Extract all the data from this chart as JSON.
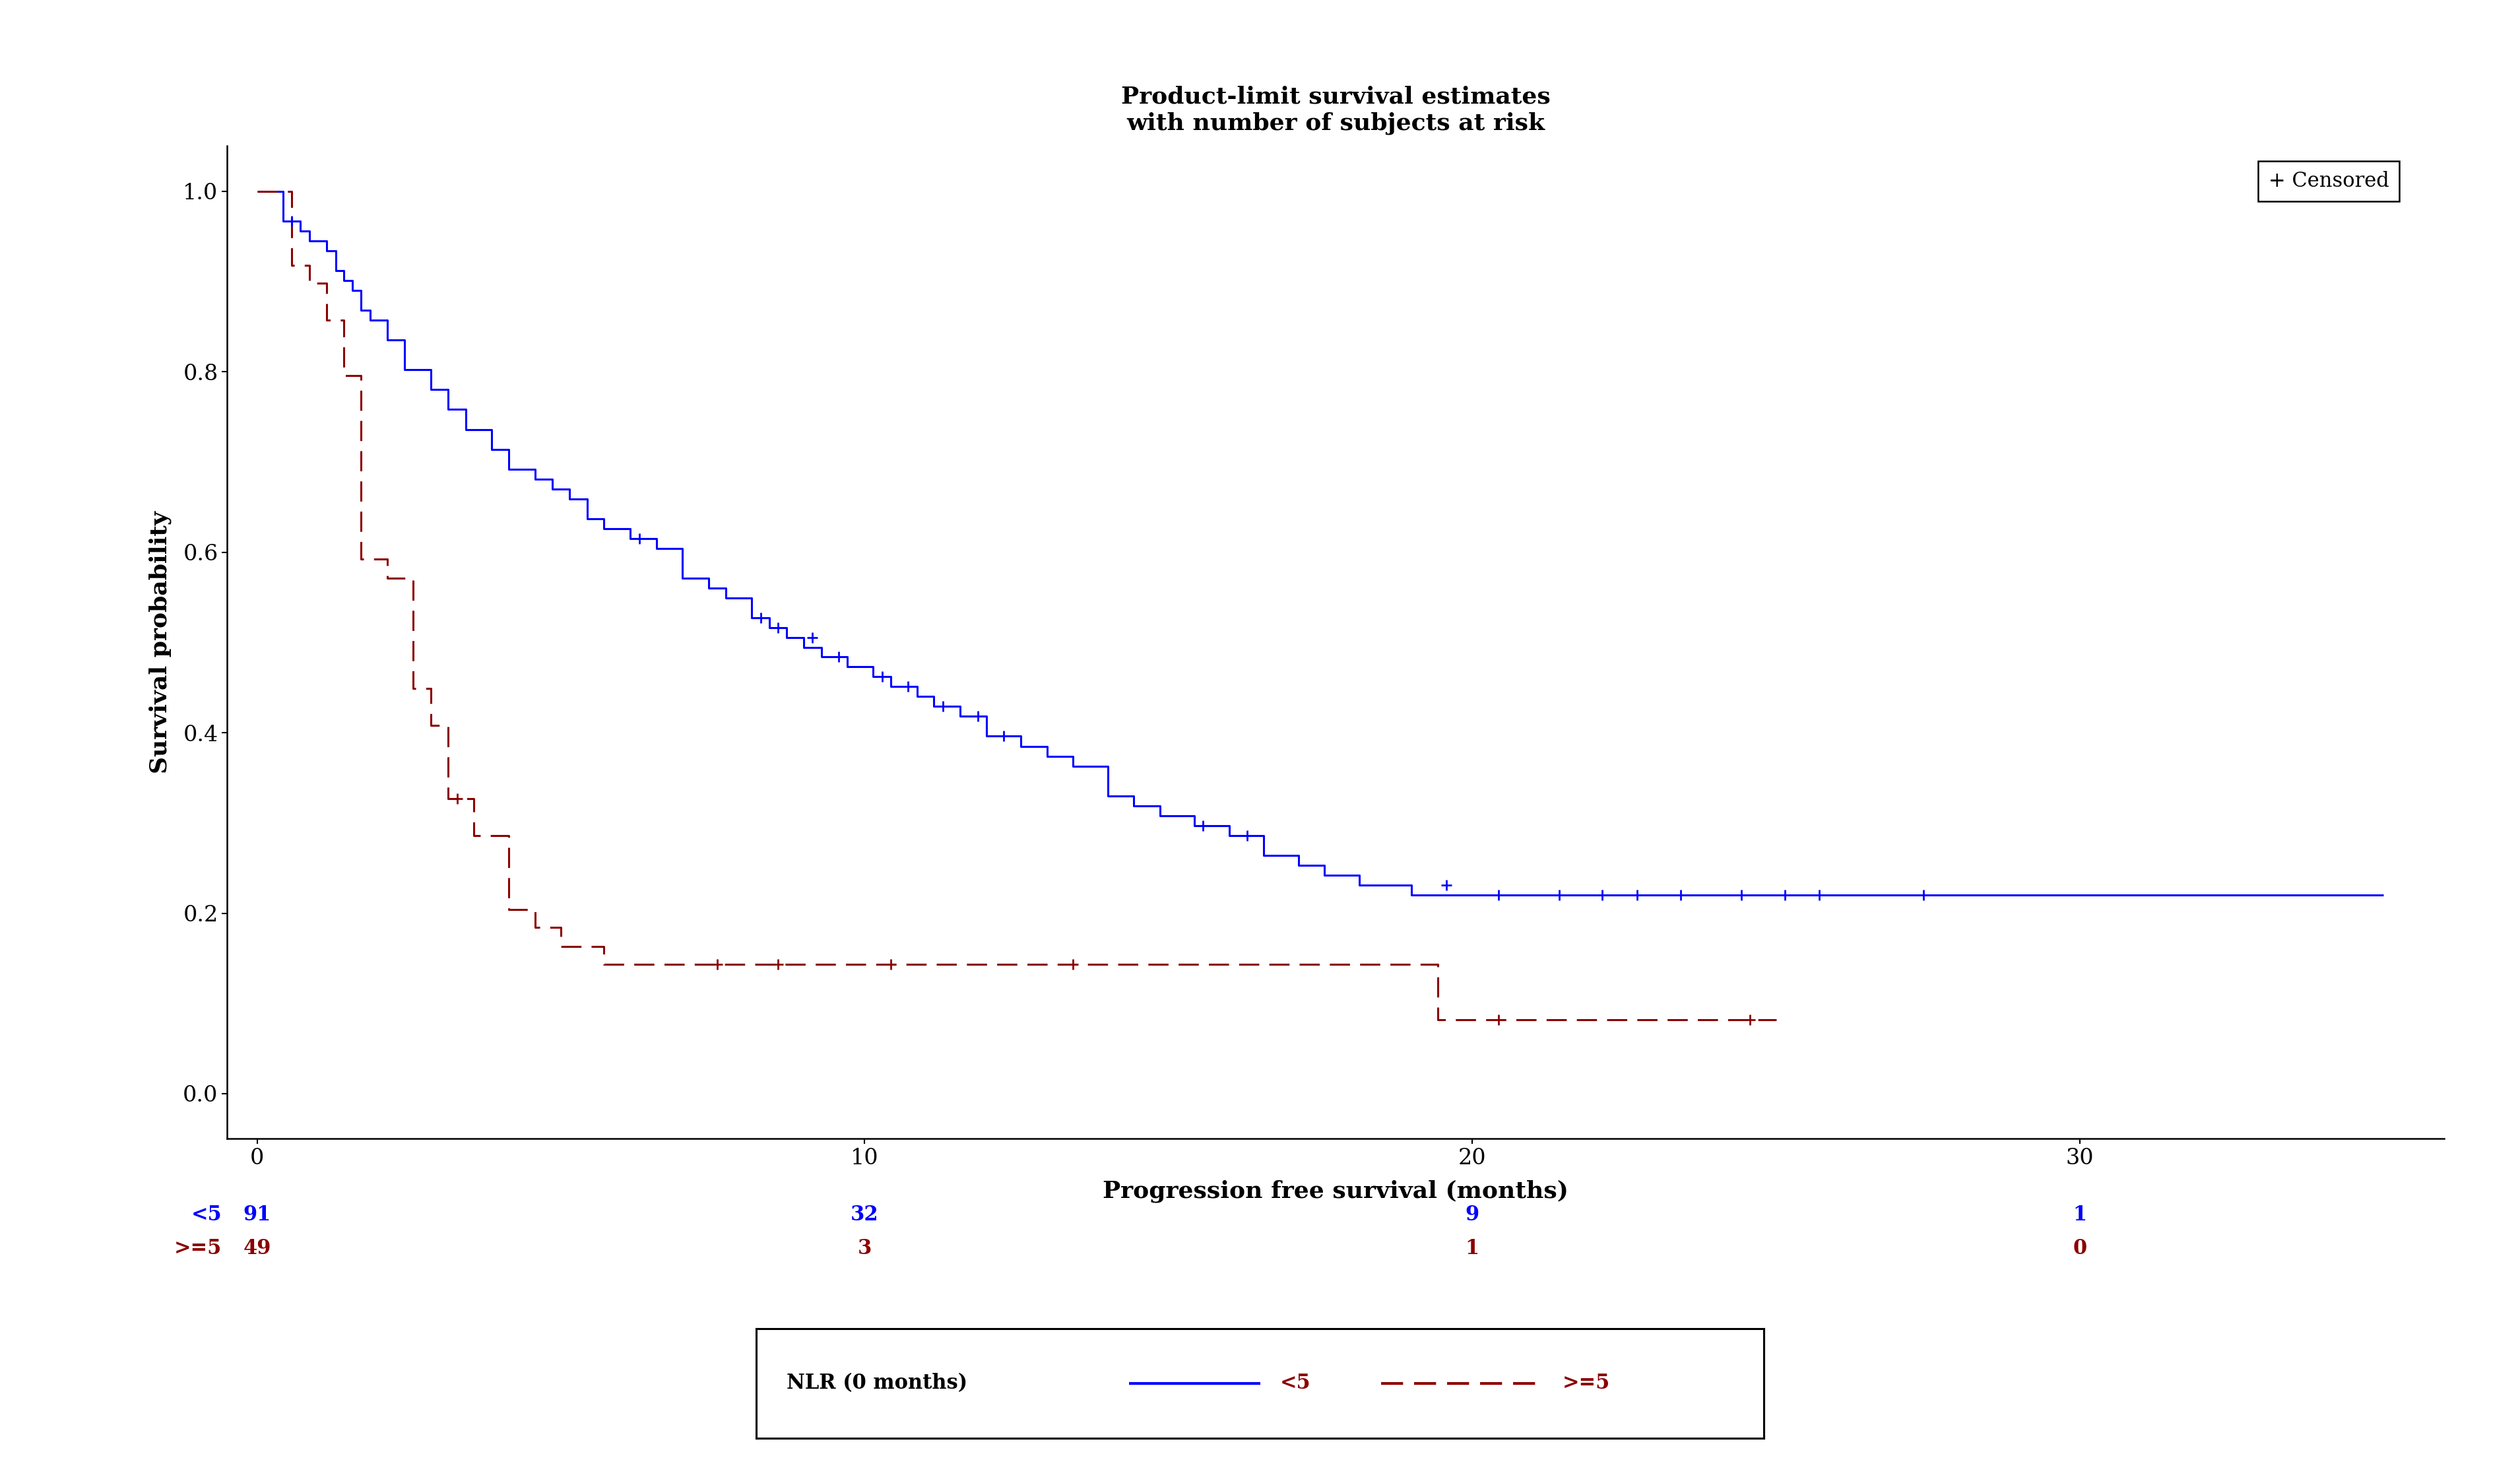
{
  "title": "Product-limit survival estimates\nwith number of subjects at risk",
  "xlabel": "Progression free survival (months)",
  "ylabel": "Survival probability",
  "xlim": [
    -0.5,
    36
  ],
  "ylim": [
    -0.05,
    1.05
  ],
  "xticks": [
    0,
    10,
    20,
    30
  ],
  "yticks": [
    0.0,
    0.2,
    0.4,
    0.6,
    0.8,
    1.0
  ],
  "blue_color": "#0000FF",
  "red_color": "#8B0000",
  "censored_label": "+ Censored",
  "legend_text": "NLR (0 months)",
  "legend_label_blue": "<5",
  "legend_label_red": ">=5",
  "risk_table": {
    "blue_label": "<5",
    "red_label": ">=5",
    "times": [
      0,
      10,
      20,
      30
    ],
    "blue_counts": [
      91,
      32,
      9,
      1
    ],
    "red_counts": [
      49,
      3,
      1,
      0
    ]
  },
  "blue_curve_steps": [
    [
      0.0,
      1.0
    ],
    [
      0.43,
      1.0
    ],
    [
      0.43,
      0.967
    ],
    [
      0.71,
      0.967
    ],
    [
      0.71,
      0.956
    ],
    [
      0.86,
      0.956
    ],
    [
      0.86,
      0.945
    ],
    [
      1.14,
      0.945
    ],
    [
      1.14,
      0.934
    ],
    [
      1.29,
      0.934
    ],
    [
      1.29,
      0.912
    ],
    [
      1.43,
      0.912
    ],
    [
      1.43,
      0.901
    ],
    [
      1.57,
      0.901
    ],
    [
      1.57,
      0.89
    ],
    [
      1.71,
      0.89
    ],
    [
      1.71,
      0.868
    ],
    [
      1.86,
      0.868
    ],
    [
      1.86,
      0.857
    ],
    [
      2.14,
      0.857
    ],
    [
      2.14,
      0.835
    ],
    [
      2.43,
      0.835
    ],
    [
      2.43,
      0.802
    ],
    [
      2.86,
      0.802
    ],
    [
      2.86,
      0.78
    ],
    [
      3.14,
      0.78
    ],
    [
      3.14,
      0.758
    ],
    [
      3.43,
      0.758
    ],
    [
      3.43,
      0.736
    ],
    [
      3.86,
      0.736
    ],
    [
      3.86,
      0.714
    ],
    [
      4.14,
      0.714
    ],
    [
      4.14,
      0.692
    ],
    [
      4.57,
      0.692
    ],
    [
      4.57,
      0.681
    ],
    [
      4.86,
      0.681
    ],
    [
      4.86,
      0.67
    ],
    [
      5.14,
      0.67
    ],
    [
      5.14,
      0.659
    ],
    [
      5.43,
      0.659
    ],
    [
      5.43,
      0.637
    ],
    [
      5.71,
      0.637
    ],
    [
      5.71,
      0.626
    ],
    [
      6.14,
      0.626
    ],
    [
      6.14,
      0.615
    ],
    [
      6.57,
      0.615
    ],
    [
      6.57,
      0.604
    ],
    [
      7.0,
      0.604
    ],
    [
      7.0,
      0.571
    ],
    [
      7.43,
      0.571
    ],
    [
      7.43,
      0.56
    ],
    [
      7.71,
      0.56
    ],
    [
      7.71,
      0.549
    ],
    [
      8.14,
      0.549
    ],
    [
      8.14,
      0.527
    ],
    [
      8.43,
      0.527
    ],
    [
      8.43,
      0.516
    ],
    [
      8.71,
      0.516
    ],
    [
      8.71,
      0.505
    ],
    [
      9.0,
      0.505
    ],
    [
      9.0,
      0.494
    ],
    [
      9.29,
      0.494
    ],
    [
      9.29,
      0.484
    ],
    [
      9.71,
      0.484
    ],
    [
      9.71,
      0.473
    ],
    [
      10.14,
      0.473
    ],
    [
      10.14,
      0.462
    ],
    [
      10.43,
      0.462
    ],
    [
      10.43,
      0.451
    ],
    [
      10.86,
      0.451
    ],
    [
      10.86,
      0.44
    ],
    [
      11.14,
      0.44
    ],
    [
      11.14,
      0.429
    ],
    [
      11.57,
      0.429
    ],
    [
      11.57,
      0.418
    ],
    [
      12.0,
      0.418
    ],
    [
      12.0,
      0.396
    ],
    [
      12.57,
      0.396
    ],
    [
      12.57,
      0.385
    ],
    [
      13.0,
      0.385
    ],
    [
      13.0,
      0.374
    ],
    [
      13.43,
      0.374
    ],
    [
      13.43,
      0.363
    ],
    [
      14.0,
      0.363
    ],
    [
      14.0,
      0.33
    ],
    [
      14.43,
      0.33
    ],
    [
      14.43,
      0.319
    ],
    [
      14.86,
      0.319
    ],
    [
      14.86,
      0.308
    ],
    [
      15.43,
      0.308
    ],
    [
      15.43,
      0.297
    ],
    [
      16.0,
      0.297
    ],
    [
      16.0,
      0.286
    ],
    [
      16.57,
      0.286
    ],
    [
      16.57,
      0.264
    ],
    [
      17.14,
      0.264
    ],
    [
      17.14,
      0.253
    ],
    [
      17.57,
      0.253
    ],
    [
      17.57,
      0.242
    ],
    [
      18.14,
      0.242
    ],
    [
      18.14,
      0.231
    ],
    [
      19.0,
      0.231
    ],
    [
      19.0,
      0.22
    ],
    [
      35.0,
      0.22
    ]
  ],
  "blue_censored": [
    [
      0.57,
      0.967
    ],
    [
      6.29,
      0.615
    ],
    [
      8.29,
      0.527
    ],
    [
      8.57,
      0.516
    ],
    [
      9.14,
      0.505
    ],
    [
      9.57,
      0.484
    ],
    [
      10.29,
      0.462
    ],
    [
      10.71,
      0.451
    ],
    [
      11.29,
      0.429
    ],
    [
      11.86,
      0.418
    ],
    [
      12.29,
      0.396
    ],
    [
      15.57,
      0.297
    ],
    [
      16.29,
      0.286
    ],
    [
      19.57,
      0.231
    ],
    [
      20.43,
      0.22
    ],
    [
      21.43,
      0.22
    ],
    [
      22.14,
      0.22
    ],
    [
      22.71,
      0.22
    ],
    [
      23.43,
      0.22
    ],
    [
      24.43,
      0.22
    ],
    [
      25.14,
      0.22
    ],
    [
      25.71,
      0.22
    ],
    [
      27.43,
      0.22
    ]
  ],
  "red_curve_steps": [
    [
      0.0,
      1.0
    ],
    [
      0.57,
      1.0
    ],
    [
      0.57,
      0.918
    ],
    [
      0.86,
      0.918
    ],
    [
      0.86,
      0.898
    ],
    [
      1.14,
      0.898
    ],
    [
      1.14,
      0.857
    ],
    [
      1.43,
      0.857
    ],
    [
      1.43,
      0.796
    ],
    [
      1.71,
      0.796
    ],
    [
      1.71,
      0.592
    ],
    [
      2.14,
      0.592
    ],
    [
      2.14,
      0.571
    ],
    [
      2.57,
      0.571
    ],
    [
      2.57,
      0.449
    ],
    [
      2.86,
      0.449
    ],
    [
      2.86,
      0.408
    ],
    [
      3.14,
      0.408
    ],
    [
      3.14,
      0.327
    ],
    [
      3.57,
      0.327
    ],
    [
      3.57,
      0.286
    ],
    [
      4.14,
      0.286
    ],
    [
      4.14,
      0.204
    ],
    [
      4.57,
      0.204
    ],
    [
      4.57,
      0.184
    ],
    [
      5.0,
      0.184
    ],
    [
      5.0,
      0.163
    ],
    [
      5.71,
      0.163
    ],
    [
      5.71,
      0.143
    ],
    [
      19.43,
      0.143
    ],
    [
      19.43,
      0.082
    ],
    [
      25.0,
      0.082
    ]
  ],
  "red_censored": [
    [
      3.29,
      0.327
    ],
    [
      7.57,
      0.143
    ],
    [
      8.57,
      0.143
    ],
    [
      10.43,
      0.143
    ],
    [
      13.43,
      0.143
    ],
    [
      20.43,
      0.082
    ],
    [
      24.57,
      0.082
    ]
  ]
}
